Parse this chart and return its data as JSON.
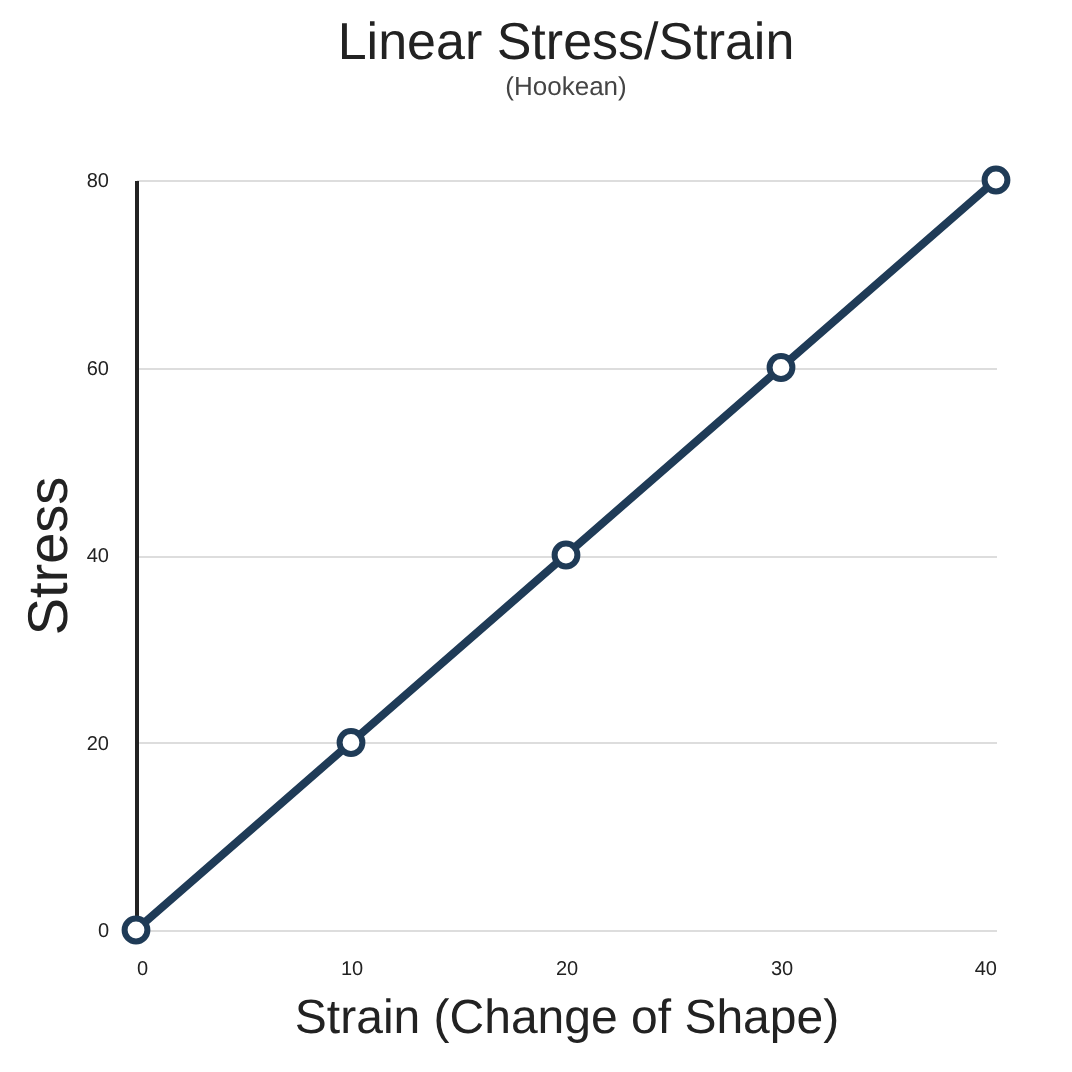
{
  "chart_data": {
    "type": "line",
    "title": "Linear Stress/Strain",
    "subtitle": "(Hookean)",
    "xlabel": "Strain (Change of Shape)",
    "ylabel": "Stress",
    "x": [
      0,
      10,
      20,
      30,
      40
    ],
    "series": [
      {
        "color": "#1f3b57",
        "values": [
          0,
          20,
          40,
          60,
          80
        ]
      }
    ],
    "xlim": [
      0,
      40
    ],
    "xticks": [
      0,
      10,
      20,
      30,
      40
    ],
    "ylim": [
      0,
      80
    ],
    "yticks": [
      0,
      20,
      40,
      60,
      80
    ],
    "grid": "y",
    "marker": "circle",
    "line_style": "solid"
  }
}
